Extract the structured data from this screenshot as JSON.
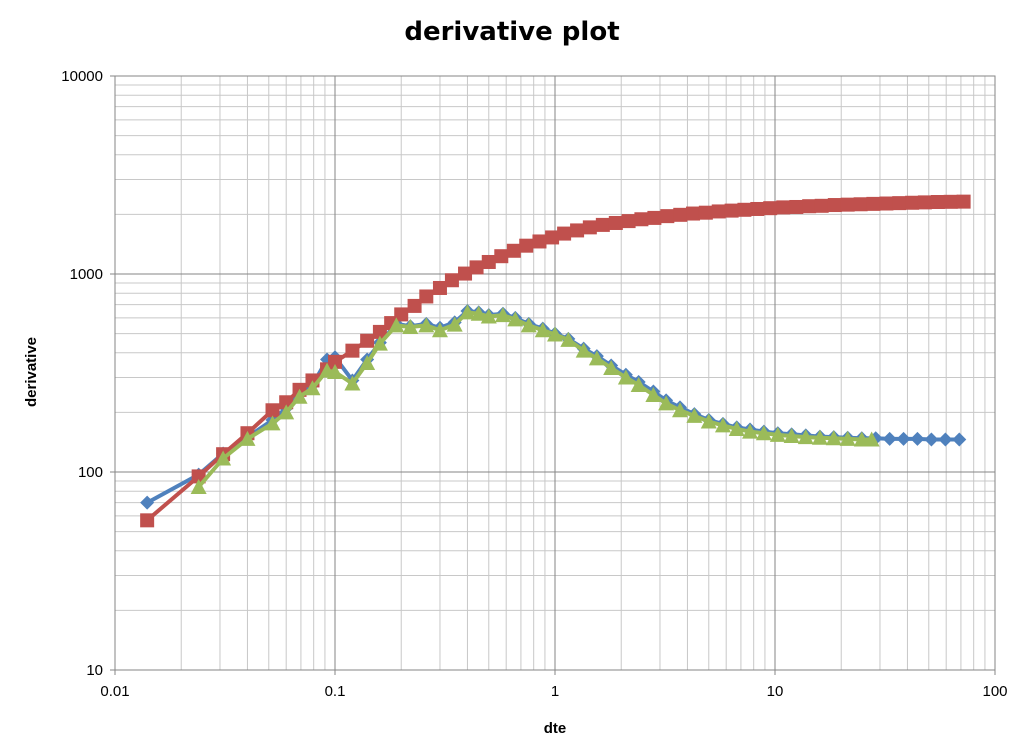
{
  "chart_data": {
    "type": "scatter",
    "title": "derivative plot",
    "xlabel": "dte",
    "ylabel": "derivative",
    "xscale": "log",
    "yscale": "log",
    "xlim": [
      0.01,
      100
    ],
    "ylim": [
      10,
      10000
    ],
    "x_ticks": [
      "0.01",
      "0.1",
      "1",
      "10",
      "100"
    ],
    "y_ticks": [
      "10",
      "100",
      "1000",
      "10000"
    ],
    "grid": true,
    "legend": "none",
    "series": [
      {
        "color": "#4f81bd",
        "marker": "diamond",
        "points": [
          [
            0.014,
            70
          ],
          [
            0.024,
            97
          ],
          [
            0.031,
            124
          ],
          [
            0.04,
            150
          ],
          [
            0.052,
            183
          ],
          [
            0.06,
            210
          ],
          [
            0.069,
            250
          ],
          [
            0.079,
            275
          ],
          [
            0.092,
            370
          ],
          [
            0.1,
            380
          ],
          [
            0.12,
            290
          ],
          [
            0.14,
            370
          ],
          [
            0.16,
            450
          ],
          [
            0.19,
            560
          ],
          [
            0.22,
            545
          ],
          [
            0.26,
            560
          ],
          [
            0.3,
            535
          ],
          [
            0.35,
            570
          ],
          [
            0.4,
            650
          ],
          [
            0.45,
            640
          ],
          [
            0.5,
            620
          ],
          [
            0.58,
            630
          ],
          [
            0.66,
            600
          ],
          [
            0.76,
            560
          ],
          [
            0.88,
            530
          ],
          [
            1.0,
            500
          ],
          [
            1.15,
            470
          ],
          [
            1.35,
            420
          ],
          [
            1.55,
            385
          ],
          [
            1.8,
            345
          ],
          [
            2.1,
            310
          ],
          [
            2.4,
            285
          ],
          [
            2.8,
            255
          ],
          [
            3.2,
            230
          ],
          [
            3.7,
            212
          ],
          [
            4.3,
            196
          ],
          [
            5.0,
            183
          ],
          [
            5.8,
            175
          ],
          [
            6.7,
            168
          ],
          [
            7.7,
            164
          ],
          [
            8.9,
            160
          ],
          [
            10.3,
            157
          ],
          [
            11.9,
            155
          ],
          [
            13.8,
            153
          ],
          [
            16,
            151
          ],
          [
            18.5,
            150
          ],
          [
            21.4,
            149
          ],
          [
            24.8,
            148
          ],
          [
            28.7,
            148
          ],
          [
            33.2,
            147
          ],
          [
            38.4,
            147
          ],
          [
            44.4,
            147
          ],
          [
            51.4,
            146
          ],
          [
            59.5,
            146
          ],
          [
            68.8,
            146
          ]
        ]
      },
      {
        "color": "#c0504d",
        "marker": "square",
        "points": [
          [
            0.014,
            57
          ],
          [
            0.024,
            95
          ],
          [
            0.031,
            123
          ],
          [
            0.04,
            157
          ],
          [
            0.052,
            205
          ],
          [
            0.06,
            225
          ],
          [
            0.069,
            260
          ],
          [
            0.079,
            290
          ],
          [
            0.092,
            330
          ],
          [
            0.1,
            360
          ],
          [
            0.12,
            410
          ],
          [
            0.14,
            460
          ],
          [
            0.16,
            510
          ],
          [
            0.18,
            565
          ],
          [
            0.2,
            625
          ],
          [
            0.23,
            690
          ],
          [
            0.26,
            770
          ],
          [
            0.3,
            850
          ],
          [
            0.34,
            930
          ],
          [
            0.39,
            1005
          ],
          [
            0.44,
            1080
          ],
          [
            0.5,
            1150
          ],
          [
            0.57,
            1230
          ],
          [
            0.65,
            1310
          ],
          [
            0.74,
            1390
          ],
          [
            0.85,
            1460
          ],
          [
            0.97,
            1530
          ],
          [
            1.1,
            1600
          ],
          [
            1.26,
            1660
          ],
          [
            1.44,
            1720
          ],
          [
            1.65,
            1770
          ],
          [
            1.89,
            1810
          ],
          [
            2.16,
            1850
          ],
          [
            2.47,
            1890
          ],
          [
            2.83,
            1920
          ],
          [
            3.24,
            1960
          ],
          [
            3.71,
            1990
          ],
          [
            4.24,
            2020
          ],
          [
            4.85,
            2040
          ],
          [
            5.55,
            2070
          ],
          [
            6.35,
            2090
          ],
          [
            7.26,
            2110
          ],
          [
            8.31,
            2130
          ],
          [
            9.51,
            2150
          ],
          [
            10.9,
            2170
          ],
          [
            12.5,
            2180
          ],
          [
            14.3,
            2200
          ],
          [
            16.3,
            2210
          ],
          [
            18.7,
            2230
          ],
          [
            21.4,
            2240
          ],
          [
            24.5,
            2250
          ],
          [
            28.0,
            2260
          ],
          [
            32.1,
            2270
          ],
          [
            36.7,
            2280
          ],
          [
            42.0,
            2290
          ],
          [
            48.0,
            2300
          ],
          [
            55.0,
            2310
          ],
          [
            62.9,
            2315
          ],
          [
            72.0,
            2320
          ]
        ]
      },
      {
        "color": "#9bbb59",
        "marker": "triangle",
        "points": [
          [
            0.024,
            84
          ],
          [
            0.031,
            117
          ],
          [
            0.04,
            147
          ],
          [
            0.052,
            176
          ],
          [
            0.06,
            200
          ],
          [
            0.069,
            240
          ],
          [
            0.079,
            265
          ],
          [
            0.092,
            325
          ],
          [
            0.1,
            320
          ],
          [
            0.12,
            280
          ],
          [
            0.14,
            355
          ],
          [
            0.16,
            445
          ],
          [
            0.19,
            550
          ],
          [
            0.22,
            540
          ],
          [
            0.26,
            550
          ],
          [
            0.3,
            520
          ],
          [
            0.35,
            555
          ],
          [
            0.4,
            640
          ],
          [
            0.45,
            630
          ],
          [
            0.5,
            610
          ],
          [
            0.58,
            620
          ],
          [
            0.66,
            590
          ],
          [
            0.76,
            550
          ],
          [
            0.88,
            520
          ],
          [
            1.0,
            495
          ],
          [
            1.15,
            465
          ],
          [
            1.35,
            410
          ],
          [
            1.55,
            375
          ],
          [
            1.8,
            335
          ],
          [
            2.1,
            300
          ],
          [
            2.4,
            275
          ],
          [
            2.8,
            245
          ],
          [
            3.2,
            222
          ],
          [
            3.7,
            205
          ],
          [
            4.3,
            192
          ],
          [
            5.0,
            180
          ],
          [
            5.8,
            172
          ],
          [
            6.7,
            165
          ],
          [
            7.7,
            160
          ],
          [
            8.9,
            157
          ],
          [
            10.3,
            154
          ],
          [
            11.9,
            152
          ],
          [
            13.8,
            150
          ],
          [
            16,
            149
          ],
          [
            18.5,
            148
          ],
          [
            21.4,
            147
          ],
          [
            24.8,
            146
          ],
          [
            27.5,
            146
          ]
        ]
      }
    ]
  }
}
